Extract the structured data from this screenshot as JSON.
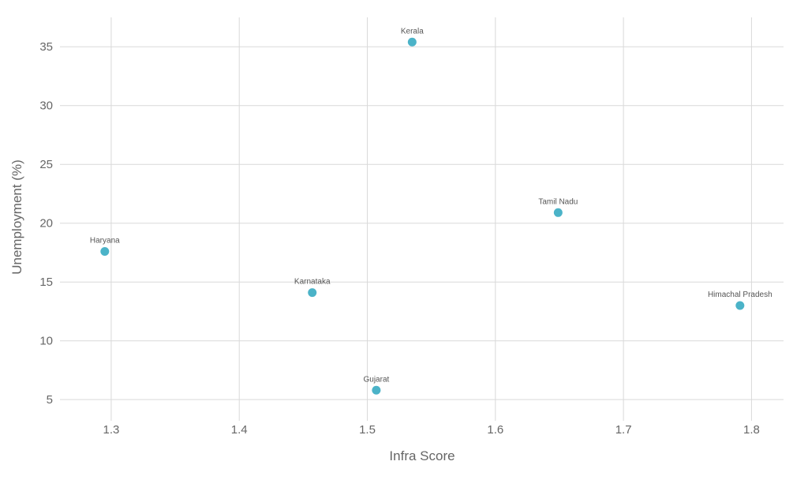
{
  "chart_data": {
    "type": "scatter",
    "title": "",
    "xlabel": "Infra Score",
    "ylabel": "Unemployment (%)",
    "xlim": [
      1.26,
      1.825
    ],
    "ylim": [
      3.2,
      37.5
    ],
    "x_ticks": [
      1.3,
      1.4,
      1.5,
      1.6,
      1.7,
      1.8
    ],
    "x_tick_labels": [
      "1.3",
      "1.4",
      "1.5",
      "1.6",
      "1.7",
      "1.8"
    ],
    "y_ticks": [
      5,
      10,
      15,
      20,
      25,
      30,
      35
    ],
    "y_tick_labels": [
      "5",
      "10",
      "15",
      "20",
      "25",
      "30",
      "35"
    ],
    "grid": true,
    "point_color": "#4bb3c8",
    "points": [
      {
        "label": "Haryana",
        "x": 1.295,
        "y": 17.6
      },
      {
        "label": "Karnataka",
        "x": 1.457,
        "y": 14.1
      },
      {
        "label": "Gujarat",
        "x": 1.507,
        "y": 5.8
      },
      {
        "label": "Kerala",
        "x": 1.535,
        "y": 35.4
      },
      {
        "label": "Tamil Nadu",
        "x": 1.649,
        "y": 20.9
      },
      {
        "label": "Himachal Pradesh",
        "x": 1.791,
        "y": 13.0
      }
    ]
  }
}
